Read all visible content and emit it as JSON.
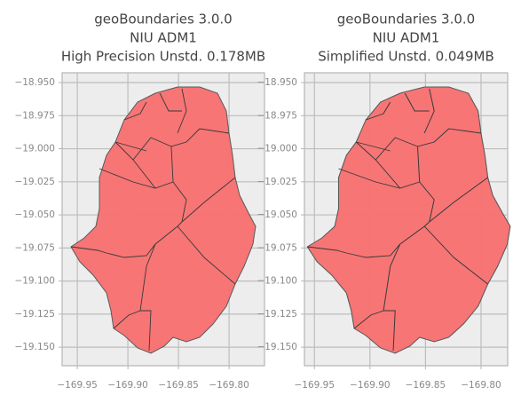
{
  "chart_data": [
    {
      "type": "map",
      "title_lines": [
        "geoBoundaries 3.0.0",
        "NIU ADM1",
        "High Precision Unstd. 0.178MB"
      ],
      "xlim": [
        -169.965,
        -169.765
      ],
      "ylim": [
        -19.164,
        -18.9426
      ],
      "xticks": [
        {
          "value": -169.95,
          "label": "−169.95"
        },
        {
          "value": -169.9,
          "label": "−169.90"
        },
        {
          "value": -169.85,
          "label": "−169.85"
        },
        {
          "value": -169.8,
          "label": "−169.80"
        }
      ],
      "yticks": [
        {
          "value": -18.95,
          "label": "−18.950"
        },
        {
          "value": -18.975,
          "label": "−18.975"
        },
        {
          "value": -19.0,
          "label": "−19.000"
        },
        {
          "value": -19.025,
          "label": "−19.025"
        },
        {
          "value": -19.05,
          "label": "−19.050"
        },
        {
          "value": -19.075,
          "label": "−19.075"
        },
        {
          "value": -19.1,
          "label": "−19.100"
        },
        {
          "value": -19.125,
          "label": "−19.125"
        },
        {
          "value": -19.15,
          "label": "−19.150"
        }
      ],
      "grid": true,
      "color": "#f87272"
    },
    {
      "type": "map",
      "title_lines": [
        "geoBoundaries 3.0.0",
        "NIU ADM1",
        "Simplified Unstd. 0.049MB"
      ],
      "xlim": [
        -169.959,
        -169.776
      ],
      "ylim": [
        -19.164,
        -18.9426
      ],
      "xticks": [
        {
          "value": -169.95,
          "label": "−169.95"
        },
        {
          "value": -169.9,
          "label": "−169.90"
        },
        {
          "value": -169.85,
          "label": "−169.85"
        },
        {
          "value": -169.8,
          "label": "−169.80"
        }
      ],
      "yticks": [
        {
          "value": -18.95,
          "label": "−18.950"
        },
        {
          "value": -18.975,
          "label": "−18.975"
        },
        {
          "value": -19.0,
          "label": "−19.000"
        },
        {
          "value": -19.025,
          "label": "−19.025"
        },
        {
          "value": -19.05,
          "label": "−19.050"
        },
        {
          "value": -19.075,
          "label": "−19.075"
        },
        {
          "value": -19.1,
          "label": "−19.100"
        },
        {
          "value": -19.125,
          "label": "−19.125"
        },
        {
          "value": -19.15,
          "label": "−19.150"
        }
      ],
      "grid": true,
      "color": "#f87272"
    }
  ]
}
